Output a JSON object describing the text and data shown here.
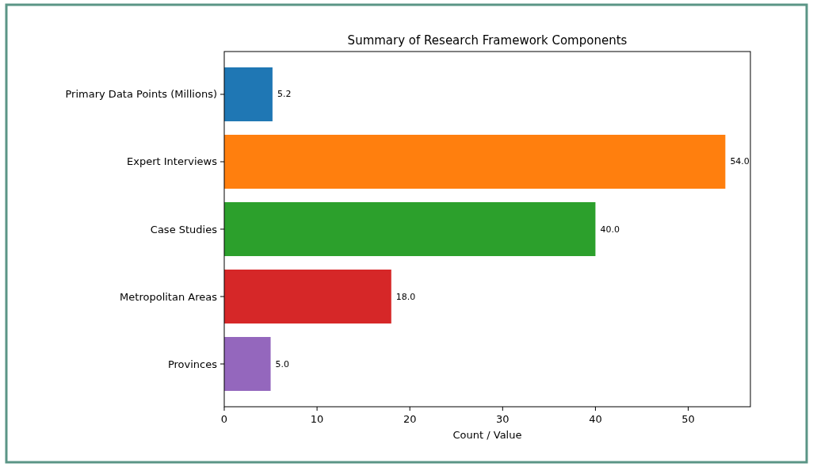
{
  "chart_data": {
    "type": "bar",
    "orientation": "horizontal",
    "title": "Summary of Research Framework Components",
    "xlabel": "Count / Value",
    "categories": [
      "Primary Data Points (Millions)",
      "Expert Interviews",
      "Case Studies",
      "Metropolitan Areas",
      "Provinces"
    ],
    "values": [
      5.2,
      54.0,
      40.0,
      18.0,
      5.0
    ],
    "colors": [
      "#1f77b4",
      "#ff7f0e",
      "#2ca02c",
      "#d62728",
      "#9467bd"
    ],
    "value_labels": [
      "5.2",
      "54.0",
      "40.0",
      "18.0",
      "5.0"
    ],
    "xlim": [
      0,
      56.7
    ],
    "xticks": [
      0,
      10,
      20,
      30,
      40,
      50
    ],
    "grid": false
  }
}
